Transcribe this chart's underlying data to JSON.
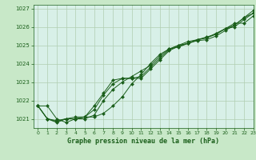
{
  "title": "Graphe pression niveau de la mer (hPa)",
  "xlabel": "Graphe pression niveau de la mer (hPa)",
  "background_color": "#c8e8c8",
  "plot_bg_color": "#d8f0e8",
  "grid_color": "#b0ceb0",
  "line_color": "#1a5e1a",
  "marker_color": "#1a5e1a",
  "xlim": [
    -0.5,
    23
  ],
  "ylim": [
    1020.5,
    1027.2
  ],
  "yticks": [
    1021,
    1022,
    1023,
    1024,
    1025,
    1026,
    1027
  ],
  "xticks": [
    0,
    1,
    2,
    3,
    4,
    5,
    6,
    7,
    8,
    9,
    10,
    11,
    12,
    13,
    14,
    15,
    16,
    17,
    18,
    19,
    20,
    21,
    22,
    23
  ],
  "series": [
    [
      1021.7,
      1021.7,
      1021.0,
      1020.8,
      1021.0,
      1021.1,
      1021.1,
      1021.3,
      1021.7,
      1022.2,
      1022.9,
      1023.4,
      1024.0,
      1024.5,
      1024.8,
      1024.9,
      1025.1,
      1025.25,
      1025.3,
      1025.5,
      1025.8,
      1026.1,
      1026.5,
      1026.9
    ],
    [
      1021.7,
      1021.0,
      1020.8,
      1021.0,
      1021.0,
      1021.0,
      1021.2,
      1022.0,
      1022.6,
      1023.0,
      1023.3,
      1023.6,
      1023.9,
      1024.4,
      1024.8,
      1025.0,
      1025.2,
      1025.3,
      1025.45,
      1025.6,
      1025.9,
      1026.2,
      1026.2,
      1026.6
    ],
    [
      1021.7,
      1021.0,
      1020.85,
      1021.0,
      1021.1,
      1021.1,
      1021.5,
      1022.3,
      1022.9,
      1023.2,
      1023.2,
      1023.3,
      1023.8,
      1024.3,
      1024.75,
      1025.0,
      1025.1,
      1025.3,
      1025.4,
      1025.6,
      1025.9,
      1026.1,
      1026.5,
      1026.75
    ],
    [
      1021.7,
      1021.0,
      1020.9,
      1021.0,
      1021.0,
      1021.1,
      1021.7,
      1022.4,
      1023.1,
      1023.2,
      1023.2,
      1023.2,
      1023.7,
      1024.2,
      1024.7,
      1024.95,
      1025.1,
      1025.3,
      1025.4,
      1025.65,
      1025.9,
      1026.0,
      1026.4,
      1026.75
    ]
  ]
}
